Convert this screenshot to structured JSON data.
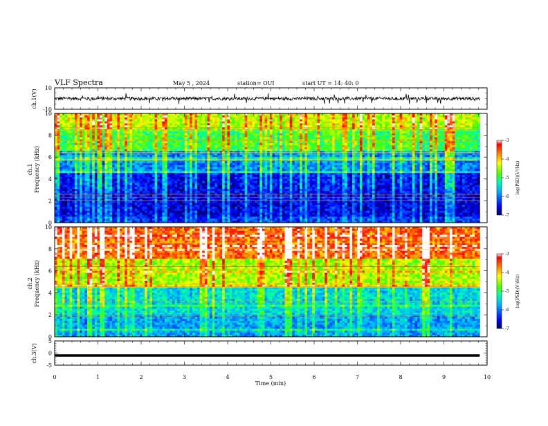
{
  "header": {
    "title": "VLF Spectra",
    "date": "May 5 , 2024",
    "station": "station= OUI",
    "start": "start UT = 14: 40: 0"
  },
  "chart_data": [
    {
      "type": "line",
      "name": "ch1-waveform",
      "ylabel": "ch.1(V)",
      "ylim": [
        -10,
        10
      ],
      "yticks": [
        "10",
        "-10"
      ],
      "xlim": [
        0,
        10
      ],
      "description_values": {
        "baseline": 0,
        "noise_amplitude": 1.5,
        "spike_max": 5
      }
    },
    {
      "type": "heatmap",
      "name": "ch1-spectrogram",
      "ylabel": "ch.1\nFrequency (kHz)",
      "ylim": [
        0,
        10
      ],
      "yticks": [
        "0",
        "2",
        "4",
        "6",
        "8",
        "10"
      ],
      "xlim": [
        0,
        9.83
      ],
      "colorbar": {
        "label": "log(PSD)(V²/Hz)",
        "ticks": [
          "-3",
          "-4",
          "-5",
          "-6",
          "-7"
        ],
        "range": [
          -7,
          -3
        ]
      },
      "bands": [
        {
          "f0": 0,
          "f1": 0.6,
          "level": -6.3
        },
        {
          "f0": 0.6,
          "f1": 2.0,
          "level": -6.6
        },
        {
          "f0": 2.0,
          "f1": 4.6,
          "level": -6.5
        },
        {
          "f0": 4.6,
          "f1": 6.5,
          "level": -5.9
        },
        {
          "f0": 6.5,
          "f1": 8.5,
          "level": -4.9
        },
        {
          "f0": 8.5,
          "f1": 10,
          "level": -4.4
        }
      ]
    },
    {
      "type": "heatmap",
      "name": "ch2-spectrogram",
      "ylabel": "ch.2\nFrequency (kHz)",
      "ylim": [
        0,
        10
      ],
      "yticks": [
        "0",
        "2",
        "4",
        "6",
        "8",
        "10"
      ],
      "xlim": [
        0,
        9.83
      ],
      "colorbar": {
        "label": "log(PSD)(V²/Hz)",
        "ticks": [
          "-3",
          "-4",
          "-5",
          "-6",
          "-7"
        ],
        "range": [
          -7,
          -3
        ]
      },
      "bands": [
        {
          "f0": 0,
          "f1": 2.0,
          "level": -5.8
        },
        {
          "f0": 2.0,
          "f1": 4.5,
          "level": -5.5
        },
        {
          "f0": 4.5,
          "f1": 7.0,
          "level": -4.5
        },
        {
          "f0": 7.0,
          "f1": 10,
          "level": -3.6
        }
      ]
    },
    {
      "type": "line",
      "name": "ch3-waveform",
      "ylabel": "ch.3(V)",
      "ylim": [
        -5,
        5
      ],
      "yticks": [
        "5",
        "0",
        "-5"
      ],
      "xlim": [
        0,
        9.83
      ],
      "values": {
        "constant": -1
      }
    }
  ],
  "x_axis": {
    "label": "Time (min)",
    "ticks": [
      "0",
      "1",
      "2",
      "3",
      "4",
      "5",
      "6",
      "7",
      "8",
      "9",
      "10"
    ],
    "range": [
      0,
      10
    ]
  }
}
